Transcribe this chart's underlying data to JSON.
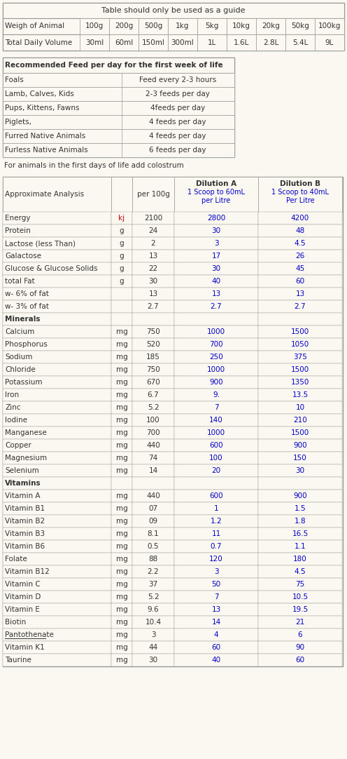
{
  "bg_color": "#faf8f0",
  "border_color": "#999999",
  "text_color": "#333333",
  "blue_color": "#0000cc",
  "red_color": "#cc0000",
  "title1": "Table should only be used as a guide",
  "weight_row_label": "Weigh of Animal",
  "weight_cols": [
    "100g",
    "200g",
    "500g",
    "1kg",
    "5kg",
    "10kg",
    "20kg",
    "50kg",
    "100kg"
  ],
  "volume_row_label": "Total Daily Volume",
  "volume_cols": [
    "30ml",
    "60ml",
    "150ml",
    "300ml",
    "1L",
    "1.6L",
    "2.8L",
    "5.4L",
    "9L"
  ],
  "feed_title": "Recommended Feed per day for the first week of life",
  "feed_rows": [
    [
      "Foals",
      "Feed every 2-3 hours"
    ],
    [
      "Lamb, Calves, Kids",
      "2-3 feeds per day"
    ],
    [
      "Pups, Kittens, Fawns",
      "4feeds per day"
    ],
    [
      "Piglets,",
      "4 feeds per day"
    ],
    [
      "Furred Native Animals",
      "4 feeds per day"
    ],
    [
      "Furless Native Animals",
      "6 feeds per day"
    ]
  ],
  "colostrum_note": "For animals in the first days of life add colostrum",
  "analysis_rows": [
    [
      "Energy",
      "kj",
      "2100",
      "2800",
      "4200",
      false
    ],
    [
      "Protein",
      "g",
      "24",
      "30",
      "48",
      false
    ],
    [
      "Lactose (less Than)",
      "g",
      "2",
      "3",
      "4.5",
      false
    ],
    [
      "Galactose",
      "g",
      "13",
      "17",
      "26",
      false
    ],
    [
      "Glucose & Glucose Solids",
      "g",
      "22",
      "30",
      "45",
      false
    ],
    [
      "total Fat",
      "g",
      "30",
      "40",
      "60",
      false
    ],
    [
      "w- 6% of fat",
      "",
      "13",
      "13",
      "13",
      false
    ],
    [
      "w- 3% of fat",
      "",
      "2.7",
      "2.7",
      "2.7",
      false
    ],
    [
      "Minerals",
      "",
      "",
      "",
      "",
      true
    ],
    [
      "Calcium",
      "mg",
      "750",
      "1000",
      "1500",
      false
    ],
    [
      "Phosphorus",
      "mg",
      "520",
      "700",
      "1050",
      false
    ],
    [
      "Sodium",
      "mg",
      "185",
      "250",
      "375",
      false
    ],
    [
      "Chloride",
      "mg",
      "750",
      "1000",
      "1500",
      false
    ],
    [
      "Potassium",
      "mg",
      "670",
      "900",
      "1350",
      false
    ],
    [
      "Iron",
      "mg",
      "6.7",
      "9.",
      "13.5",
      false
    ],
    [
      "Zinc",
      "mg",
      "5.2",
      "7",
      "10",
      false
    ],
    [
      "Iodine",
      "mg",
      "100",
      "140",
      "210",
      false
    ],
    [
      "Manganese",
      "mg",
      "700",
      "1000",
      "1500",
      false
    ],
    [
      "Copper",
      "mg",
      "440",
      "600",
      "900",
      false
    ],
    [
      "Magnesium",
      "mg",
      "74",
      "100",
      "150",
      false
    ],
    [
      "Selenium",
      "mg",
      "14",
      "20",
      "30",
      false
    ],
    [
      "Vitamins",
      "",
      "",
      "",
      "",
      true
    ],
    [
      "Vitamin A",
      "mg",
      "440",
      "600",
      "900",
      false
    ],
    [
      "Vitamin B1",
      "mg",
      "07",
      "1",
      "1.5",
      false
    ],
    [
      "Vitamin B2",
      "mg",
      "09",
      "1.2",
      "1.8",
      false
    ],
    [
      "Vitamin B3",
      "mg",
      "8.1",
      "11",
      "16.5",
      false
    ],
    [
      "Vitamin B6",
      "mg",
      "0.5",
      "0.7",
      "1.1",
      false
    ],
    [
      "Folate",
      "mg",
      "88",
      "120",
      "180",
      false
    ],
    [
      "Vitamin B12",
      "mg",
      "2.2",
      "3",
      "4.5",
      false
    ],
    [
      "Vitamin C",
      "mg",
      "37",
      "50",
      "75",
      false
    ],
    [
      "Vitamin D",
      "mg",
      "5.2",
      "7",
      "10.5",
      false
    ],
    [
      "Vitamin E",
      "mg",
      "9.6",
      "13",
      "19.5",
      false
    ],
    [
      "Biotin",
      "mg",
      "10.4",
      "14",
      "21",
      false
    ],
    [
      "Pantothenate",
      "mg",
      "3",
      "4",
      "6",
      false
    ],
    [
      "Vitamin K1",
      "mg",
      "44",
      "60",
      "90",
      false
    ],
    [
      "Taurine",
      "mg",
      "30",
      "40",
      "60",
      false
    ]
  ]
}
